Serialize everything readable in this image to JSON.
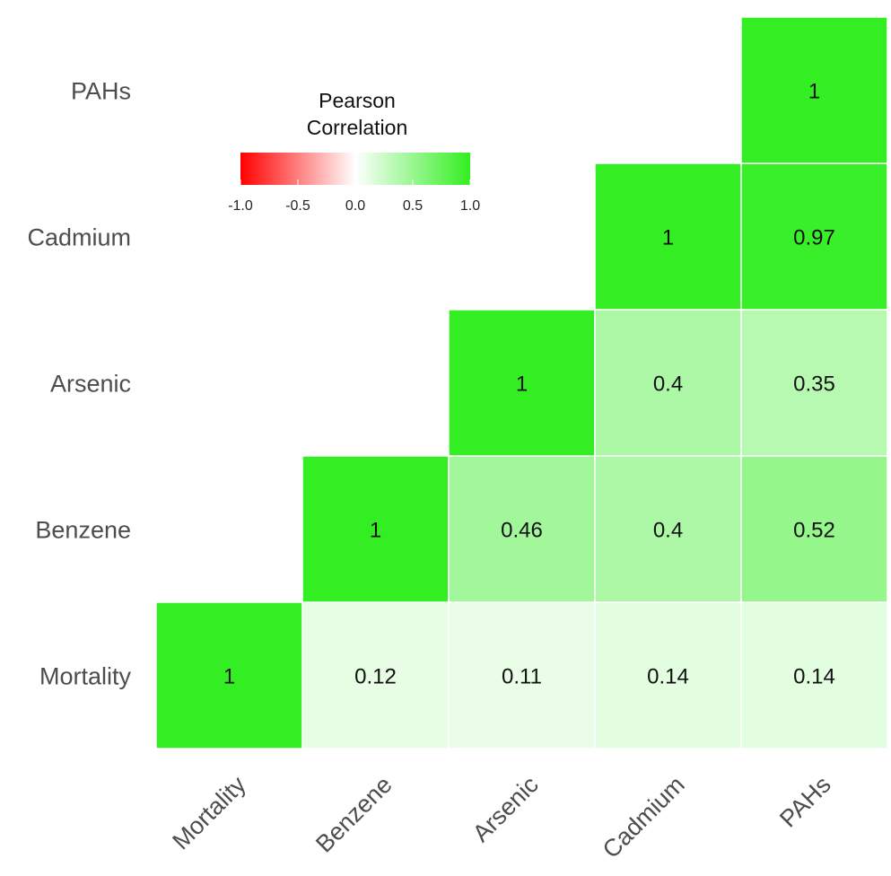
{
  "chart_data": {
    "type": "heatmap",
    "variables": [
      "Mortality",
      "Benzene",
      "Arsenic",
      "Cadmium",
      "PAHs"
    ],
    "cells": [
      {
        "row": "Mortality",
        "col": "Mortality",
        "value": 1,
        "label": "1"
      },
      {
        "row": "Mortality",
        "col": "Benzene",
        "value": 0.12,
        "label": "0.12"
      },
      {
        "row": "Mortality",
        "col": "Arsenic",
        "value": 0.11,
        "label": "0.11"
      },
      {
        "row": "Mortality",
        "col": "Cadmium",
        "value": 0.14,
        "label": "0.14"
      },
      {
        "row": "Mortality",
        "col": "PAHs",
        "value": 0.14,
        "label": "0.14"
      },
      {
        "row": "Benzene",
        "col": "Benzene",
        "value": 1,
        "label": "1"
      },
      {
        "row": "Benzene",
        "col": "Arsenic",
        "value": 0.46,
        "label": "0.46"
      },
      {
        "row": "Benzene",
        "col": "Cadmium",
        "value": 0.4,
        "label": "0.4"
      },
      {
        "row": "Benzene",
        "col": "PAHs",
        "value": 0.52,
        "label": "0.52"
      },
      {
        "row": "Arsenic",
        "col": "Arsenic",
        "value": 1,
        "label": "1"
      },
      {
        "row": "Arsenic",
        "col": "Cadmium",
        "value": 0.4,
        "label": "0.4"
      },
      {
        "row": "Arsenic",
        "col": "PAHs",
        "value": 0.35,
        "label": "0.35"
      },
      {
        "row": "Cadmium",
        "col": "Cadmium",
        "value": 1,
        "label": "1"
      },
      {
        "row": "Cadmium",
        "col": "PAHs",
        "value": 0.97,
        "label": "0.97"
      },
      {
        "row": "PAHs",
        "col": "PAHs",
        "value": 1,
        "label": "1"
      }
    ],
    "legend": {
      "title_line1": "Pearson",
      "title_line2": "Correlation",
      "range": [
        -1.0,
        1.0
      ],
      "ticks": [
        -1.0,
        -0.5,
        0.0,
        0.5,
        1.0
      ],
      "tick_labels": [
        "-1.0",
        "-0.5",
        "0.0",
        "0.5",
        "1.0"
      ],
      "placement": "top-left"
    },
    "colors": {
      "low": "#ff0000",
      "mid": "#ffffff",
      "high": "#33ee22",
      "cell_border": "#ffffff"
    },
    "grid": false
  }
}
